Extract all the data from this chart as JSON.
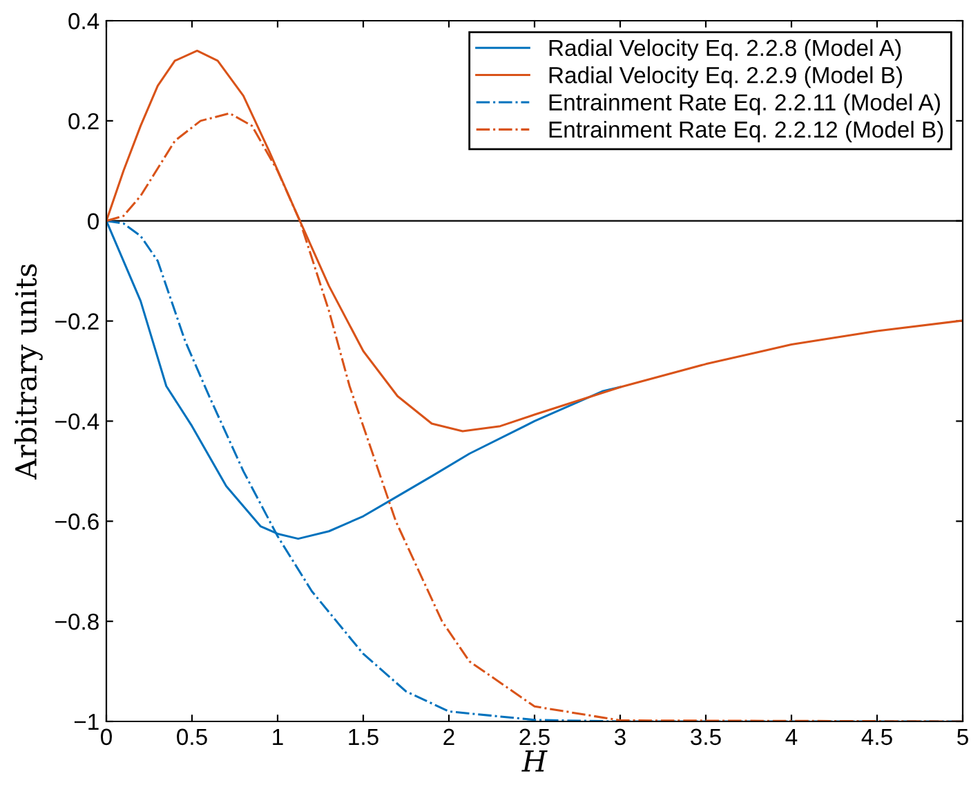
{
  "chart_data": {
    "type": "line",
    "xlabel": "H",
    "ylabel": "Arbitrary units",
    "xlim": [
      0,
      5
    ],
    "ylim": [
      -1,
      0.4
    ],
    "xticks": [
      0,
      0.5,
      1,
      1.5,
      2,
      2.5,
      3,
      3.5,
      4,
      4.5,
      5
    ],
    "yticks": [
      {
        "value": -1,
        "label": "−1"
      },
      {
        "value": -0.8,
        "label": "−0.8"
      },
      {
        "value": -0.6,
        "label": "−0.6"
      },
      {
        "value": -0.4,
        "label": "−0.4"
      },
      {
        "value": -0.2,
        "label": "−0.2"
      },
      0,
      0.2,
      0.4
    ],
    "grid": false,
    "legend": "top right",
    "marker": "none",
    "ref_lines": [
      {
        "axis": "y",
        "value": 0,
        "color": "#000000"
      }
    ],
    "series": [
      {
        "name": "Radial Velocity Eq. 2.2.8 (Model A)",
        "color": "#0072bd",
        "line_style": "solid",
        "x": [
          0,
          0.1,
          0.2,
          0.35,
          0.5,
          0.7,
          0.9,
          1.0,
          1.12,
          1.3,
          1.5,
          1.65,
          1.9,
          2.12,
          2.5,
          2.9,
          3.0
        ],
        "values": [
          0,
          -0.08,
          -0.16,
          -0.33,
          -0.41,
          -0.53,
          -0.61,
          -0.625,
          -0.635,
          -0.62,
          -0.59,
          -0.56,
          -0.51,
          -0.465,
          -0.4,
          -0.34,
          -0.332
        ]
      },
      {
        "name": "Radial Velocity Eq. 2.2.9 (Model B)",
        "color": "#d95319",
        "line_style": "solid",
        "x": [
          0,
          0.1,
          0.2,
          0.3,
          0.4,
          0.53,
          0.65,
          0.8,
          0.95,
          1.13,
          1.3,
          1.5,
          1.7,
          1.9,
          2.08,
          2.3,
          2.5,
          3.0,
          3.5,
          4.0,
          4.5,
          5.0
        ],
        "values": [
          0,
          0.1,
          0.19,
          0.27,
          0.32,
          0.34,
          0.32,
          0.25,
          0.14,
          0,
          -0.13,
          -0.26,
          -0.35,
          -0.405,
          -0.42,
          -0.41,
          -0.387,
          -0.332,
          -0.286,
          -0.247,
          -0.22,
          -0.199
        ]
      },
      {
        "name": "Entrainment Rate Eq. 2.2.11 (Model A)",
        "color": "#0072bd",
        "line_style": "dashdot",
        "x": [
          0,
          0.1,
          0.2,
          0.3,
          0.46,
          0.6,
          0.8,
          1.0,
          1.2,
          1.5,
          1.75,
          2.0,
          2.5,
          3.0,
          5.0
        ],
        "values": [
          0,
          -0.005,
          -0.03,
          -0.08,
          -0.24,
          -0.35,
          -0.5,
          -0.63,
          -0.74,
          -0.865,
          -0.94,
          -0.98,
          -0.997,
          -1,
          -1
        ]
      },
      {
        "name": "Entrainment Rate Eq. 2.2.12 (Model B)",
        "color": "#d95319",
        "line_style": "dashdot",
        "x": [
          0,
          0.1,
          0.2,
          0.4,
          0.55,
          0.72,
          0.85,
          1.0,
          1.13,
          1.3,
          1.42,
          1.69,
          1.96,
          2.12,
          2.5,
          3.0,
          5.0
        ],
        "values": [
          0,
          0.01,
          0.05,
          0.16,
          0.2,
          0.215,
          0.19,
          0.1,
          0,
          -0.18,
          -0.33,
          -0.6,
          -0.8,
          -0.88,
          -0.97,
          -0.998,
          -1
        ]
      }
    ]
  }
}
